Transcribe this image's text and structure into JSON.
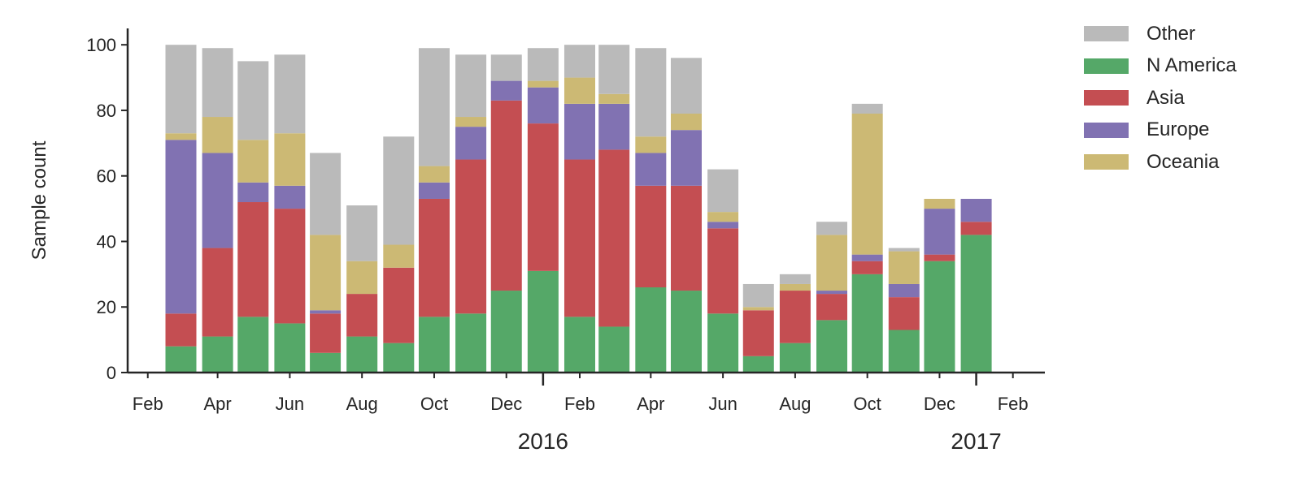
{
  "chart_data": {
    "type": "bar",
    "stacked": true,
    "ylabel": "Sample count",
    "xlabel": "",
    "ylim": [
      0,
      105
    ],
    "yticks": [
      0,
      20,
      40,
      60,
      80,
      100
    ],
    "xlim": [
      "2015-01-15",
      "2017-02-28"
    ],
    "x_month_ticks": [
      {
        "date": "2015-02-01",
        "label": "Feb"
      },
      {
        "date": "2015-04-01",
        "label": "Apr"
      },
      {
        "date": "2015-06-01",
        "label": "Jun"
      },
      {
        "date": "2015-08-01",
        "label": "Aug"
      },
      {
        "date": "2015-10-01",
        "label": "Oct"
      },
      {
        "date": "2015-12-01",
        "label": "Dec"
      },
      {
        "date": "2016-02-01",
        "label": "Feb"
      },
      {
        "date": "2016-04-01",
        "label": "Apr"
      },
      {
        "date": "2016-06-01",
        "label": "Jun"
      },
      {
        "date": "2016-08-01",
        "label": "Aug"
      },
      {
        "date": "2016-10-01",
        "label": "Oct"
      },
      {
        "date": "2016-12-01",
        "label": "Dec"
      },
      {
        "date": "2017-02-01",
        "label": "Feb"
      }
    ],
    "x_year_ticks": [
      {
        "date": "2016-01-01",
        "label": "2016"
      },
      {
        "date": "2017-01-01",
        "label": "2017"
      }
    ],
    "x": [
      "2015-03",
      "2015-04",
      "2015-05",
      "2015-06",
      "2015-07",
      "2015-08",
      "2015-09",
      "2015-10",
      "2015-11",
      "2015-12",
      "2016-01",
      "2016-02",
      "2016-03",
      "2016-04",
      "2016-05",
      "2016-06",
      "2016-07",
      "2016-08",
      "2016-09",
      "2016-10",
      "2016-11",
      "2016-12",
      "2017-01"
    ],
    "series": [
      {
        "name": "N America",
        "color": "#55a868",
        "values": [
          8,
          11,
          17,
          15,
          6,
          11,
          9,
          17,
          18,
          25,
          31,
          17,
          14,
          26,
          25,
          18,
          5,
          9,
          16,
          30,
          13,
          34,
          42
        ]
      },
      {
        "name": "Asia",
        "color": "#c44e52",
        "values": [
          10,
          27,
          35,
          35,
          12,
          13,
          23,
          36,
          47,
          58,
          45,
          48,
          54,
          31,
          32,
          26,
          14,
          16,
          8,
          4,
          10,
          2,
          4
        ]
      },
      {
        "name": "Europe",
        "color": "#8172b2",
        "values": [
          53,
          29,
          6,
          7,
          1,
          0,
          0,
          5,
          10,
          6,
          11,
          17,
          14,
          10,
          17,
          2,
          0,
          0,
          1,
          2,
          4,
          14,
          7
        ]
      },
      {
        "name": "Oceania",
        "color": "#ccb974",
        "values": [
          2,
          11,
          13,
          16,
          23,
          10,
          7,
          5,
          3,
          0,
          2,
          8,
          3,
          5,
          5,
          3,
          1,
          2,
          17,
          43,
          10,
          3,
          0
        ]
      },
      {
        "name": "Other",
        "color": "#bababa",
        "values": [
          27,
          21,
          24,
          24,
          25,
          17,
          33,
          36,
          19,
          8,
          10,
          10,
          15,
          27,
          17,
          13,
          7,
          3,
          4,
          3,
          1,
          0,
          0
        ]
      }
    ],
    "legend_order": [
      "Other",
      "N America",
      "Asia",
      "Europe",
      "Oceania"
    ],
    "legend_position": "top-right-outside",
    "grid": false
  }
}
